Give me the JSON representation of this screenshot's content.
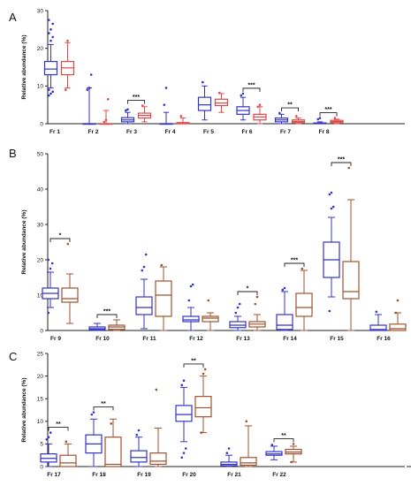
{
  "chart_data": [
    {
      "panel": "A",
      "type": "box",
      "ylabel": "Relative abundance (%)",
      "ylim": [
        0,
        30
      ],
      "yticks": [
        0,
        10,
        20,
        30
      ],
      "colors": {
        "group1": "#3333cc",
        "group2": "#e04848"
      },
      "categories": [
        "Fr 1",
        "Fr 2",
        "Fr 3",
        "Fr 4",
        "Fr 5",
        "Fr 6",
        "Fr 7",
        "Fr 8"
      ],
      "significance": [
        "",
        "",
        "***",
        "",
        "",
        "***",
        "**",
        "***"
      ],
      "boxes": [
        [
          [
            9.5,
            13,
            14.5,
            16.5,
            21
          ],
          [
            9.5,
            13,
            14.8,
            16.5,
            21.5
          ]
        ],
        [
          [
            0,
            0,
            0,
            0,
            9.5
          ],
          [
            0,
            0,
            0,
            0,
            3.5
          ]
        ],
        [
          [
            0,
            0.5,
            1,
            1.6,
            3
          ],
          [
            0.5,
            1.5,
            2.2,
            2.8,
            4.5
          ]
        ],
        [
          [
            0,
            0,
            0,
            0,
            3
          ],
          [
            0,
            0,
            0,
            0.3,
            1.5
          ]
        ],
        [
          [
            1,
            3.5,
            5,
            7,
            10
          ],
          [
            3,
            4.8,
            5.5,
            6.5,
            8
          ]
        ],
        [
          [
            1,
            2.5,
            3.5,
            4.5,
            7
          ],
          [
            0,
            1,
            1.8,
            2.5,
            4.5
          ]
        ],
        [
          [
            0,
            0.5,
            1,
            1.5,
            2.5
          ],
          [
            0,
            0.3,
            0.6,
            1,
            1.5
          ]
        ],
        [
          [
            0,
            0,
            0.1,
            0.2,
            0.5
          ],
          [
            0,
            0.3,
            0.6,
            0.9,
            1.2
          ]
        ]
      ],
      "outliers": [
        [
          [
            7.5,
            8,
            8.5,
            9,
            22,
            23,
            24,
            25,
            26.5,
            27.5
          ],
          [
            9,
            22
          ]
        ],
        [
          [
            9,
            9.5,
            13
          ],
          [
            0.5,
            1,
            6.5
          ]
        ],
        [
          [
            3.5,
            3.8
          ],
          [
            4.8
          ]
        ],
        [
          [
            5,
            9.5
          ],
          [
            2
          ]
        ],
        [
          [
            11
          ],
          [
            8.2
          ]
        ],
        [
          [
            7.5,
            8
          ],
          [
            4.5,
            5
          ]
        ],
        [
          [
            2.8
          ],
          [
            2
          ]
        ],
        [
          [
            1.2,
            1.5
          ],
          [
            1.5
          ]
        ]
      ]
    },
    {
      "panel": "B",
      "type": "box",
      "ylabel": "Relative abundance (%)",
      "ylim": [
        0,
        50
      ],
      "yticks": [
        0,
        10,
        20,
        30,
        40,
        50
      ],
      "colors": {
        "group1": "#3333cc",
        "group2": "#a0522d"
      },
      "categories": [
        "Fr 9",
        "Fr 10",
        "Fr 11",
        "Fr 12",
        "Fr 13",
        "Fr 14",
        "Fr 15",
        "Fr 16"
      ],
      "significance": [
        "*",
        "***",
        "",
        "",
        "*",
        "***",
        "***",
        ""
      ],
      "boxes": [
        [
          [
            6.5,
            9,
            10.5,
            12,
            16.5
          ],
          [
            2,
            8,
            9,
            12,
            16
          ]
        ],
        [
          [
            0,
            0.2,
            0.5,
            1,
            2
          ],
          [
            0,
            0.3,
            1,
            1.5,
            3
          ]
        ],
        [
          [
            0.5,
            4.5,
            6.5,
            9.5,
            14.5
          ],
          [
            0,
            4,
            10,
            14,
            18
          ]
        ],
        [
          [
            0,
            2.5,
            3,
            4,
            6.5
          ],
          [
            0,
            2.5,
            3.5,
            4,
            5
          ]
        ],
        [
          [
            0,
            0.8,
            1.5,
            2.5,
            4
          ],
          [
            0,
            1,
            1.8,
            2.5,
            4.5
          ]
        ],
        [
          [
            0,
            0.3,
            1.5,
            4.5,
            11
          ],
          [
            0,
            4,
            6.5,
            10.5,
            17
          ]
        ],
        [
          [
            9.5,
            15,
            20,
            25,
            32
          ],
          [
            0,
            9,
            11,
            19.5,
            37
          ]
        ],
        [
          [
            0,
            0,
            0.3,
            1.5,
            4.5
          ],
          [
            0,
            0,
            0.5,
            1.8,
            5
          ]
        ]
      ],
      "outliers": [
        [
          [
            5,
            17.5,
            19,
            20
          ],
          [
            24.5
          ]
        ],
        [
          [],
          []
        ],
        [
          [
            17,
            18,
            21.5
          ],
          [
            18.5
          ]
        ],
        [
          [
            8.5,
            12.5,
            13
          ],
          [
            8.5
          ]
        ],
        [
          [
            5,
            6.5,
            7.5
          ],
          [
            7.5,
            9.5
          ]
        ],
        [
          [
            11.5,
            12
          ],
          [
            17.5
          ]
        ],
        [
          [
            5.5,
            34.5,
            35,
            38.5,
            39
          ],
          [
            46
          ]
        ],
        [
          [
            5.3
          ],
          [
            5,
            8.5
          ]
        ]
      ]
    },
    {
      "panel": "C",
      "type": "box",
      "ylabel": "Relative abundance (%)",
      "ylim": [
        0,
        25
      ],
      "yticks": [
        0,
        5,
        10,
        15,
        20,
        25
      ],
      "colors": {
        "group1": "#3333cc",
        "group2": "#a0522d"
      },
      "categories": [
        "Fr 17",
        "Fr 18",
        "Fr 19",
        "Fr 20",
        "Fr 21",
        "Fr 22"
      ],
      "significance": [
        "**",
        "**",
        "",
        "**",
        "",
        "**"
      ],
      "boxes": [
        [
          [
            0,
            1,
            1.8,
            2.8,
            5
          ],
          [
            0,
            0,
            0.8,
            2.5,
            5
          ]
        ],
        [
          [
            0,
            3,
            5,
            7,
            10.5
          ],
          [
            0,
            0,
            0.5,
            6.5,
            10.5
          ]
        ],
        [
          [
            0,
            1,
            2,
            3.5,
            6.5
          ],
          [
            0,
            0.5,
            1.2,
            3,
            8.5
          ]
        ],
        [
          [
            5.5,
            10,
            11.5,
            13.5,
            17.5
          ],
          [
            7.5,
            11,
            13,
            15.5,
            20
          ]
        ],
        [
          [
            0,
            0.2,
            0.5,
            1,
            2.5
          ],
          [
            0,
            0.3,
            0.8,
            2,
            9
          ]
        ],
        [
          [
            1.5,
            2.5,
            2.8,
            3.3,
            4.5
          ],
          [
            1,
            2.8,
            3.2,
            3.8,
            4.5
          ]
        ]
      ],
      "outliers": [
        [
          [
            6,
            6.5,
            7.5
          ],
          [
            5.5
          ]
        ],
        [
          [
            11.5,
            12
          ],
          [
            9.5
          ]
        ],
        [
          [
            7,
            8
          ],
          [
            17
          ]
        ],
        [
          [
            2,
            3,
            4,
            18,
            19
          ],
          [
            7.5,
            20.5,
            21.5
          ]
        ],
        [
          [
            3,
            4
          ],
          [
            10
          ]
        ],
        [
          [
            4.8
          ],
          [
            1,
            5
          ]
        ]
      ]
    }
  ]
}
